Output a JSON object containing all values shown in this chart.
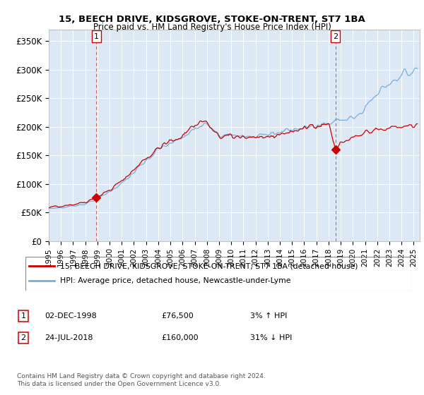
{
  "title": "15, BEECH DRIVE, KIDSGROVE, STOKE-ON-TRENT, ST7 1BA",
  "subtitle": "Price paid vs. HM Land Registry's House Price Index (HPI)",
  "ylabel_ticks": [
    "£0",
    "£50K",
    "£100K",
    "£150K",
    "£200K",
    "£250K",
    "£300K",
    "£350K"
  ],
  "ytick_values": [
    0,
    50000,
    100000,
    150000,
    200000,
    250000,
    300000,
    350000
  ],
  "ylim": [
    0,
    370000
  ],
  "xlim_start": 1995.0,
  "xlim_end": 2025.5,
  "marker1_x": 1998.92,
  "marker1_y": 76500,
  "marker2_x": 2018.56,
  "marker2_y": 160000,
  "legend_line1": "15, BEECH DRIVE, KIDSGROVE, STOKE-ON-TRENT, ST7 1BA (detached house)",
  "legend_line2": "HPI: Average price, detached house, Newcastle-under-Lyme",
  "note1_date": "02-DEC-1998",
  "note1_price": "£76,500",
  "note1_hpi": "3% ↑ HPI",
  "note2_date": "24-JUL-2018",
  "note2_price": "£160,000",
  "note2_hpi": "31% ↓ HPI",
  "copyright": "Contains HM Land Registry data © Crown copyright and database right 2024.\nThis data is licensed under the Open Government Licence v3.0.",
  "color_red": "#cc0000",
  "color_blue": "#7aaddb",
  "bg_color": "#ffffff",
  "plot_bg": "#dce9f5",
  "grid_color": "#ffffff"
}
